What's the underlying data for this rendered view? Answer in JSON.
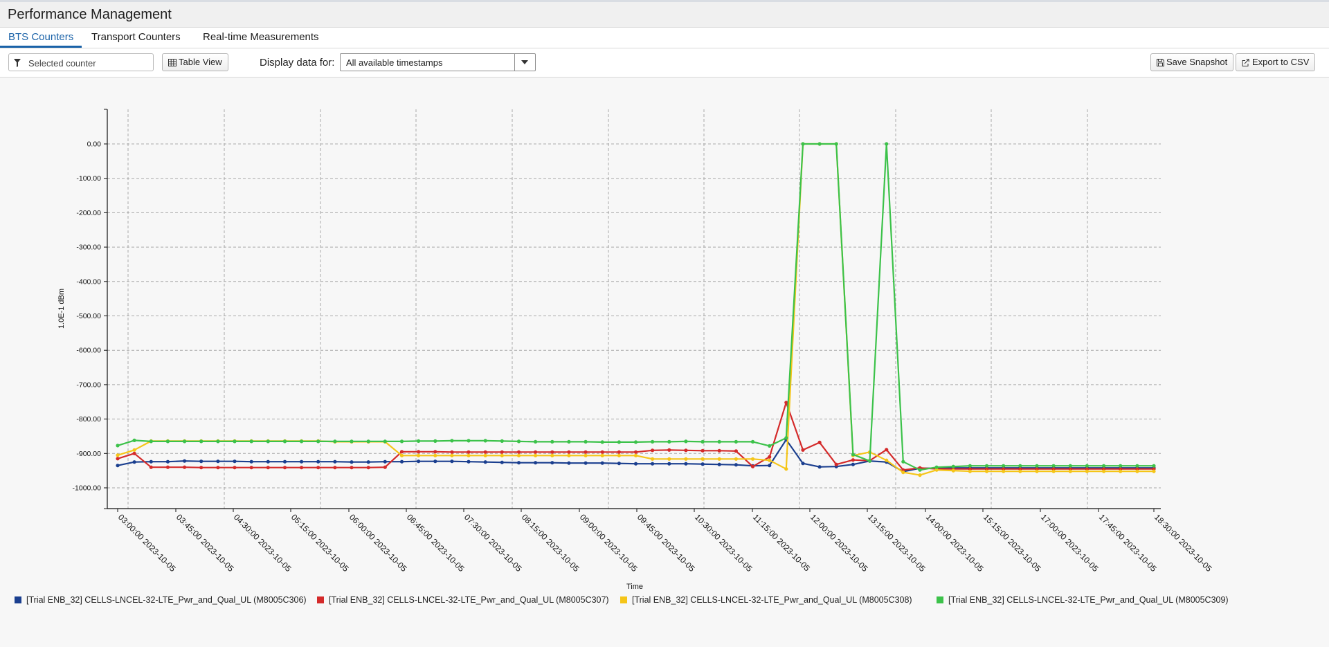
{
  "app": {
    "title": "Performance Management"
  },
  "tabs": [
    {
      "label": "BTS Counters",
      "active": true
    },
    {
      "label": "Transport Counters",
      "active": false
    },
    {
      "label": "Real-time Measurements",
      "active": false
    }
  ],
  "toolbar": {
    "filter_placeholder": "Selected counter",
    "filter_icon": "filter-icon",
    "table_view_label": "Table View",
    "table_view_icon": "table-icon",
    "display_label": "Display data for:",
    "display_value": "All available timestamps",
    "save_snapshot_label": "Save Snapshot",
    "save_snapshot_icon": "save-icon",
    "export_csv_label": "Export to CSV",
    "export_csv_icon": "export-icon"
  },
  "chart_data": {
    "type": "line",
    "xlabel": "Time",
    "ylabel": "1.0E-1 dBm",
    "ylim": [
      -1050,
      100
    ],
    "yticks": [
      0,
      -100,
      -200,
      -300,
      -400,
      -500,
      -600,
      -700,
      -800,
      -900,
      -1000
    ],
    "ytick_labels": [
      "0.00",
      "-100.00",
      "-200.00",
      "-300.00",
      "-400.00",
      "-500.00",
      "-600.00",
      "-700.00",
      "-800.00",
      "-900.00",
      "-1000.00"
    ],
    "xticks": [
      "03:00:00 2023-10-05",
      "03:45:00 2023-10-05",
      "04:30:00 2023-10-05",
      "05:15:00 2023-10-05",
      "06:00:00 2023-10-05",
      "06:45:00 2023-10-05",
      "07:30:00 2023-10-05",
      "08:15:00 2023-10-05",
      "09:00:00 2023-10-05",
      "09:45:00 2023-10-05",
      "10:30:00 2023-10-05",
      "11:15:00 2023-10-05",
      "12:00:00 2023-10-05",
      "13:15:00 2023-10-05",
      "14:00:00 2023-10-05",
      "15:15:00 2023-10-05",
      "17:00:00 2023-10-05",
      "17:45:00 2023-10-05",
      "18:30:00 2023-10-05"
    ],
    "x_unit": "minutes",
    "x": [
      180,
      195,
      210,
      225,
      240,
      255,
      270,
      285,
      300,
      315,
      330,
      345,
      360,
      375,
      390,
      405,
      420,
      435,
      450,
      465,
      480,
      495,
      510,
      525,
      540,
      555,
      570,
      585,
      600,
      615,
      630,
      645,
      660,
      675,
      690,
      705,
      720,
      735,
      750,
      765,
      780,
      795,
      810,
      825,
      840,
      855,
      870,
      885,
      900,
      915,
      930,
      945,
      960,
      975,
      990,
      1005,
      1020,
      1035,
      1050,
      1065,
      1080,
      1095,
      1110
    ],
    "grid": true,
    "legend_position": "bottom-left",
    "series": [
      {
        "name": "[Trial ENB_32] CELLS-LNCEL-32-LTE_Pwr_and_Qual_UL (M8005C306)",
        "color": "#1b3f8f",
        "values": [
          -935,
          -925,
          -924,
          -924,
          -922,
          -923,
          -923,
          -923,
          -924,
          -924,
          -924,
          -924,
          -924,
          -924,
          -925,
          -925,
          -924,
          -924,
          -923,
          -923,
          -923,
          -924,
          -925,
          -926,
          -927,
          -927,
          -927,
          -928,
          -928,
          -928,
          -929,
          -930,
          -930,
          -930,
          -930,
          -931,
          -932,
          -933,
          -936,
          -935,
          -860,
          -929,
          -939,
          -938,
          -932,
          -922,
          -925,
          -953,
          -943,
          -943,
          -942,
          -942,
          -942,
          -942,
          -942,
          -942,
          -942,
          -942,
          -942,
          -942,
          -942,
          -942,
          -942
        ]
      },
      {
        "name": "[Trial ENB_32] CELLS-LNCEL-32-LTE_Pwr_and_Qual_UL (M8005C307)",
        "color": "#d42a2a",
        "values": [
          -915,
          -900,
          -940,
          -940,
          -940,
          -941,
          -941,
          -941,
          -941,
          -941,
          -941,
          -941,
          -941,
          -941,
          -941,
          -941,
          -940,
          -895,
          -895,
          -895,
          -896,
          -896,
          -896,
          -896,
          -896,
          -896,
          -896,
          -896,
          -896,
          -896,
          -896,
          -896,
          -891,
          -890,
          -891,
          -892,
          -892,
          -893,
          -938,
          -910,
          -752,
          -890,
          -868,
          -932,
          -919,
          -921,
          -889,
          -948,
          -942,
          -945,
          -945,
          -945,
          -945,
          -945,
          -945,
          -945,
          -945,
          -945,
          -945,
          -945,
          -945,
          -945,
          -945
        ]
      },
      {
        "name": "[Trial ENB_32] CELLS-LNCEL-32-LTE_Pwr_and_Qual_UL (M8005C308)",
        "color": "#f5c518",
        "values": [
          -905,
          -890,
          -864,
          -864,
          -864,
          -864,
          -864,
          -864,
          -864,
          -864,
          -864,
          -864,
          -864,
          -866,
          -866,
          -866,
          -866,
          -906,
          -906,
          -906,
          -906,
          -906,
          -906,
          -906,
          -906,
          -906,
          -906,
          -906,
          -906,
          -906,
          -906,
          -906,
          -916,
          -916,
          -916,
          -916,
          -916,
          -916,
          -916,
          -920,
          -945,
          0,
          0,
          0,
          -906,
          -896,
          -920,
          -955,
          -963,
          -948,
          -950,
          -952,
          -952,
          -952,
          -952,
          -952,
          -952,
          -952,
          -952,
          -952,
          -952,
          -952,
          -952
        ]
      },
      {
        "name": "[Trial ENB_32] CELLS-LNCEL-32-LTE_Pwr_and_Qual_UL (M8005C309)",
        "color": "#3cc24a",
        "values": [
          -877,
          -862,
          -865,
          -865,
          -865,
          -865,
          -865,
          -865,
          -865,
          -865,
          -865,
          -865,
          -865,
          -865,
          -865,
          -865,
          -865,
          -865,
          -864,
          -864,
          -863,
          -863,
          -863,
          -864,
          -865,
          -866,
          -866,
          -866,
          -866,
          -867,
          -867,
          -867,
          -866,
          -866,
          -865,
          -866,
          -866,
          -866,
          -866,
          -878,
          -855,
          0,
          0,
          0,
          -903,
          -922,
          0,
          -924,
          -948,
          -940,
          -938,
          -936,
          -936,
          -936,
          -936,
          -936,
          -936,
          -936,
          -936,
          -936,
          -936,
          -936,
          -936
        ]
      }
    ]
  }
}
